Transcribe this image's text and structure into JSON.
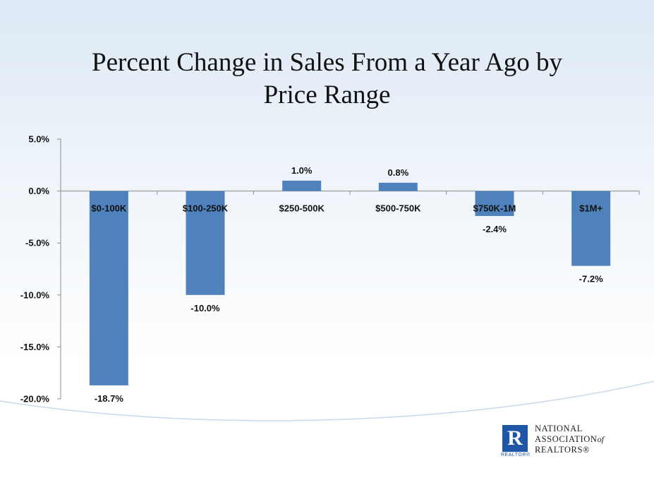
{
  "slide": {
    "title_line1": "Percent Change in Sales From a Year Ago by",
    "title_line2": "Price Range"
  },
  "chart_data": {
    "type": "bar",
    "title": "Percent Change in Sales From a Year Ago by Price Range",
    "categories": [
      "$0-100K",
      "$100-250K",
      "$250-500K",
      "$500-750K",
      "$750K-1M",
      "$1M+"
    ],
    "values": [
      -18.7,
      -10.0,
      1.0,
      0.8,
      -2.4,
      -7.2
    ],
    "data_labels": [
      "-18.7%",
      "-10.0%",
      "1.0%",
      "0.8%",
      "-2.4%",
      "-7.2%"
    ],
    "y_ticks": [
      "5.0%",
      "0.0%",
      "-5.0%",
      "-10.0%",
      "-15.0%",
      "-20.0%"
    ],
    "y_tick_values": [
      5,
      0,
      -5,
      -10,
      -15,
      -20
    ],
    "ylim": [
      -20,
      5
    ],
    "xlabel": "",
    "ylabel": "",
    "grid": false,
    "legend": "none",
    "bar_color": "#4f81bd",
    "category_label_position": "at zero line"
  },
  "logo": {
    "mark_letter": "R",
    "mark_caption": "REALTOR®",
    "line1": "NATIONAL",
    "line2_main": "ASSOCIATION",
    "line2_of": "of",
    "line3": "REALTORS®"
  }
}
